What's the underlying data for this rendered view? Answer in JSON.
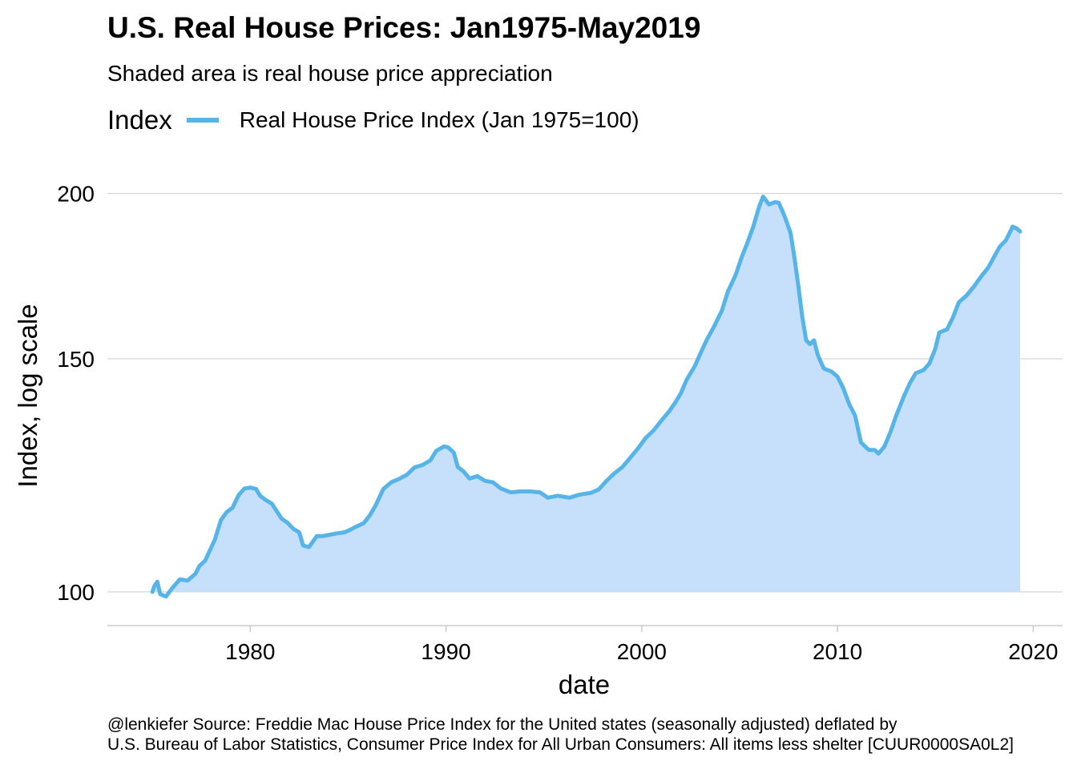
{
  "chart_data": {
    "type": "area",
    "title": "U.S. Real House Prices: Jan1975-May2019",
    "subtitle": "Shaded area is real house price appreciation",
    "xlabel": "date",
    "ylabel": "Index, log scale",
    "y_scale": "log",
    "xlim": [
      1972.7,
      2021.5
    ],
    "ylim": [
      94.3,
      212.5
    ],
    "x_ticks": [
      1980,
      1990,
      2000,
      2010,
      2020
    ],
    "y_ticks": [
      100,
      150,
      200
    ],
    "grid": true,
    "legend": {
      "title": "Index",
      "position": "top"
    },
    "line_color": "#56B4E9",
    "fill_color": "#C6E0FB",
    "fill_baseline": 100,
    "series": [
      {
        "name": "Real House Price Index (Jan 1975=100)",
        "points": [
          [
            1975.0,
            100.0
          ],
          [
            1975.1,
            101.0
          ],
          [
            1975.25,
            101.8
          ],
          [
            1975.4,
            99.6
          ],
          [
            1975.7,
            99.2
          ],
          [
            1976.0,
            100.6
          ],
          [
            1976.4,
            102.2
          ],
          [
            1976.8,
            102.0
          ],
          [
            1977.2,
            103.2
          ],
          [
            1977.4,
            104.6
          ],
          [
            1977.7,
            105.6
          ],
          [
            1977.9,
            107.2
          ],
          [
            1978.2,
            109.6
          ],
          [
            1978.5,
            113.3
          ],
          [
            1978.8,
            114.9
          ],
          [
            1979.1,
            115.8
          ],
          [
            1979.4,
            118.3
          ],
          [
            1979.7,
            119.7
          ],
          [
            1980.0,
            119.9
          ],
          [
            1980.3,
            119.6
          ],
          [
            1980.5,
            118.2
          ],
          [
            1980.8,
            117.3
          ],
          [
            1981.1,
            116.6
          ],
          [
            1981.3,
            115.4
          ],
          [
            1981.6,
            113.6
          ],
          [
            1981.9,
            112.8
          ],
          [
            1982.2,
            111.6
          ],
          [
            1982.5,
            110.9
          ],
          [
            1982.7,
            108.4
          ],
          [
            1983.0,
            108.1
          ],
          [
            1983.4,
            110.2
          ],
          [
            1983.7,
            110.2
          ],
          [
            1984.0,
            110.4
          ],
          [
            1984.4,
            110.7
          ],
          [
            1984.8,
            110.9
          ],
          [
            1985.1,
            111.4
          ],
          [
            1985.4,
            112.0
          ],
          [
            1985.8,
            112.7
          ],
          [
            1986.1,
            114.2
          ],
          [
            1986.4,
            116.2
          ],
          [
            1986.8,
            119.6
          ],
          [
            1987.2,
            121.0
          ],
          [
            1987.6,
            121.7
          ],
          [
            1988.0,
            122.6
          ],
          [
            1988.4,
            124.2
          ],
          [
            1988.8,
            124.7
          ],
          [
            1989.2,
            125.7
          ],
          [
            1989.5,
            127.8
          ],
          [
            1989.9,
            128.8
          ],
          [
            1990.1,
            128.6
          ],
          [
            1990.4,
            127.4
          ],
          [
            1990.6,
            124.3
          ],
          [
            1990.9,
            123.3
          ],
          [
            1991.2,
            121.8
          ],
          [
            1991.6,
            122.3
          ],
          [
            1992.0,
            121.3
          ],
          [
            1992.4,
            121.0
          ],
          [
            1992.8,
            119.7
          ],
          [
            1993.3,
            118.9
          ],
          [
            1993.8,
            119.1
          ],
          [
            1994.3,
            119.1
          ],
          [
            1994.8,
            118.9
          ],
          [
            1995.2,
            117.8
          ],
          [
            1995.7,
            118.2
          ],
          [
            1996.3,
            117.8
          ],
          [
            1996.8,
            118.4
          ],
          [
            1997.4,
            118.8
          ],
          [
            1997.8,
            119.5
          ],
          [
            1998.2,
            121.3
          ],
          [
            1998.6,
            122.9
          ],
          [
            1999.0,
            124.2
          ],
          [
            1999.4,
            126.2
          ],
          [
            1999.8,
            128.3
          ],
          [
            2000.2,
            130.7
          ],
          [
            2000.6,
            132.4
          ],
          [
            2001.0,
            134.7
          ],
          [
            2001.4,
            136.9
          ],
          [
            2001.7,
            138.9
          ],
          [
            2002.0,
            141.3
          ],
          [
            2002.3,
            144.7
          ],
          [
            2002.7,
            148.0
          ],
          [
            2003.0,
            151.4
          ],
          [
            2003.3,
            154.8
          ],
          [
            2003.7,
            158.7
          ],
          [
            2004.1,
            163.2
          ],
          [
            2004.4,
            168.6
          ],
          [
            2004.8,
            173.6
          ],
          [
            2005.1,
            178.9
          ],
          [
            2005.4,
            183.6
          ],
          [
            2005.7,
            188.8
          ],
          [
            2006.0,
            195.5
          ],
          [
            2006.2,
            198.9
          ],
          [
            2006.5,
            196.2
          ],
          [
            2006.8,
            197.0
          ],
          [
            2007.0,
            196.8
          ],
          [
            2007.3,
            192.2
          ],
          [
            2007.6,
            186.8
          ],
          [
            2007.8,
            178.9
          ],
          [
            2008.0,
            170.3
          ],
          [
            2008.2,
            161.4
          ],
          [
            2008.4,
            154.9
          ],
          [
            2008.6,
            153.9
          ],
          [
            2008.8,
            154.9
          ],
          [
            2009.0,
            150.9
          ],
          [
            2009.3,
            147.5
          ],
          [
            2009.7,
            146.7
          ],
          [
            2010.0,
            145.4
          ],
          [
            2010.3,
            142.5
          ],
          [
            2010.6,
            138.6
          ],
          [
            2010.9,
            135.9
          ],
          [
            2011.2,
            129.7
          ],
          [
            2011.6,
            128.0
          ],
          [
            2011.9,
            128.0
          ],
          [
            2012.1,
            127.2
          ],
          [
            2012.4,
            128.8
          ],
          [
            2012.7,
            132.0
          ],
          [
            2013.0,
            135.9
          ],
          [
            2013.4,
            140.6
          ],
          [
            2013.7,
            143.8
          ],
          [
            2014.0,
            146.3
          ],
          [
            2014.4,
            147.1
          ],
          [
            2014.7,
            148.8
          ],
          [
            2015.0,
            152.7
          ],
          [
            2015.2,
            157.0
          ],
          [
            2015.6,
            157.9
          ],
          [
            2015.9,
            161.2
          ],
          [
            2016.2,
            165.5
          ],
          [
            2016.6,
            167.5
          ],
          [
            2017.0,
            170.3
          ],
          [
            2017.3,
            172.8
          ],
          [
            2017.7,
            175.8
          ],
          [
            2018.0,
            179.1
          ],
          [
            2018.3,
            182.4
          ],
          [
            2018.6,
            184.3
          ],
          [
            2018.8,
            186.8
          ],
          [
            2018.95,
            188.8
          ],
          [
            2019.15,
            188.2
          ],
          [
            2019.33,
            187.2
          ]
        ]
      }
    ]
  },
  "legend": {
    "title": "Index",
    "label": "Real House Price Index (Jan 1975=100)"
  },
  "caption": {
    "line1": "@lenkiefer Source: Freddie Mac House Price Index for the United states (seasonally adjusted) deflated by",
    "line2": "U.S. Bureau of Labor Statistics, Consumer Price Index for All Urban Consumers: All items less shelter [CUUR0000SA0L2]"
  }
}
